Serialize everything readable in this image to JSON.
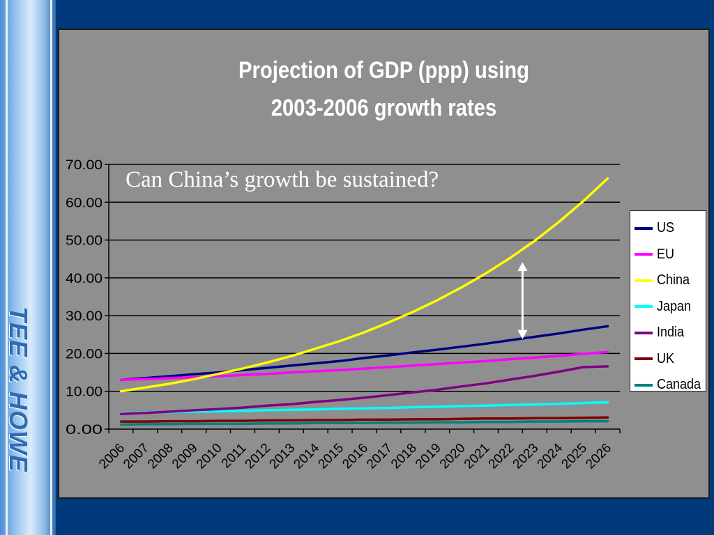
{
  "branding": {
    "text": "TEE & HOWE"
  },
  "chart_data": {
    "type": "line",
    "title_lines": [
      "Projection of GDP (ppp) using",
      "2003-2006 growth rates"
    ],
    "annotation": "Can China’s growth be sustained?",
    "categories": [
      "2006",
      "2007",
      "2008",
      "2009",
      "2010",
      "2011",
      "2012",
      "2013",
      "2014",
      "2015",
      "2016",
      "2017",
      "2018",
      "2019",
      "2020",
      "2021",
      "2022",
      "2023",
      "2024",
      "2025",
      "2026"
    ],
    "ylim": [
      0,
      70
    ],
    "y_ticks": [
      "0.00",
      "10.00",
      "20.00",
      "30.00",
      "40.00",
      "50.00",
      "60.00",
      "70.00"
    ],
    "grid": "horizontal",
    "legend_position": "right",
    "series": [
      {
        "name": "US",
        "color": "#000080",
        "values": [
          13.0,
          13.5,
          14.0,
          14.5,
          15.0,
          15.6,
          16.2,
          16.8,
          17.4,
          18.0,
          18.8,
          19.5,
          20.3,
          21.0,
          21.8,
          22.6,
          23.5,
          24.4,
          25.3,
          26.3,
          27.2
        ]
      },
      {
        "name": "EU",
        "color": "#ff00ff",
        "values": [
          13.0,
          13.2,
          13.5,
          13.7,
          14.0,
          14.3,
          14.6,
          15.0,
          15.3,
          15.6,
          16.0,
          16.4,
          16.8,
          17.2,
          17.6,
          18.0,
          18.5,
          18.9,
          19.4,
          19.9,
          20.4
        ]
      },
      {
        "name": "China",
        "color": "#ffff00",
        "values": [
          10.0,
          11.0,
          12.0,
          13.2,
          14.6,
          16.0,
          17.6,
          19.3,
          21.3,
          23.3,
          25.6,
          28.2,
          31.0,
          34.1,
          37.5,
          41.2,
          45.3,
          49.8,
          54.8,
          60.3,
          66.3
        ]
      },
      {
        "name": "Japan",
        "color": "#00ffff",
        "values": [
          4.2,
          4.4,
          4.5,
          4.6,
          4.7,
          4.8,
          5.0,
          5.1,
          5.2,
          5.4,
          5.5,
          5.6,
          5.8,
          5.9,
          6.1,
          6.2,
          6.4,
          6.5,
          6.7,
          6.9,
          7.1
        ]
      },
      {
        "name": "India",
        "color": "#800080",
        "values": [
          4.0,
          4.3,
          4.6,
          5.0,
          5.3,
          5.7,
          6.2,
          6.6,
          7.2,
          7.7,
          8.3,
          9.0,
          9.7,
          10.4,
          11.3,
          12.1,
          13.1,
          14.1,
          15.2,
          16.4,
          16.6
        ]
      },
      {
        "name": "UK",
        "color": "#800000",
        "values": [
          2.0,
          2.0,
          2.1,
          2.1,
          2.2,
          2.2,
          2.3,
          2.3,
          2.4,
          2.4,
          2.5,
          2.5,
          2.6,
          2.6,
          2.7,
          2.8,
          2.8,
          2.9,
          2.9,
          3.0,
          3.1
        ]
      },
      {
        "name": "Canada",
        "color": "#008080",
        "values": [
          1.2,
          1.3,
          1.3,
          1.4,
          1.4,
          1.4,
          1.5,
          1.5,
          1.6,
          1.6,
          1.6,
          1.7,
          1.7,
          1.8,
          1.8,
          1.9,
          1.9,
          2.0,
          2.0,
          2.1,
          2.1
        ]
      }
    ],
    "arrow": {
      "category": "2022",
      "from": 44.0,
      "to": 24.0,
      "color": "#ffffff"
    }
  }
}
